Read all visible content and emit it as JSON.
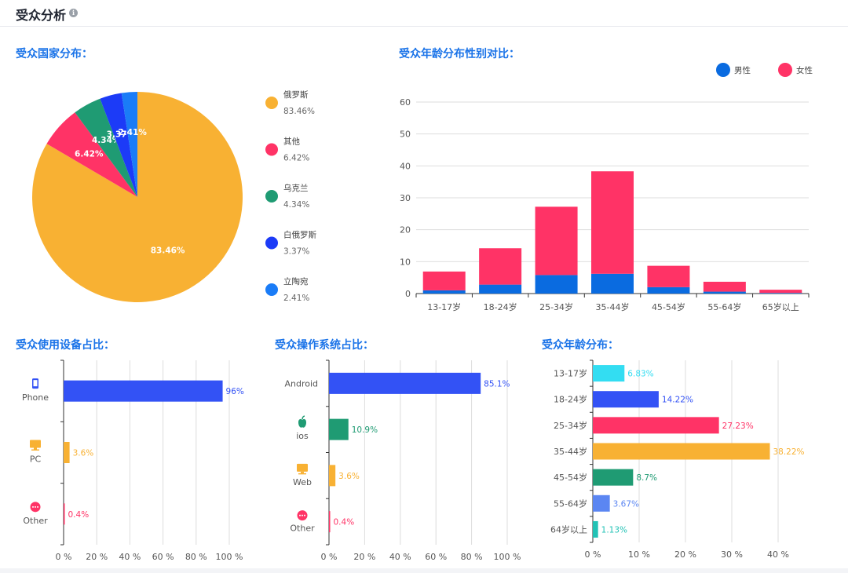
{
  "header": {
    "title": "受众分析",
    "info_icon": "info-icon"
  },
  "colors": {
    "orange": "#F8B133",
    "pink": "#FF3366",
    "teal": "#1F9B73",
    "blue": "#1C3BF7",
    "azure": "#1A7CF7",
    "male": "#0A6BE0",
    "female": "#FF3366",
    "bar_blue": "#3352F5",
    "cyan": "#33DDF2",
    "light_blue": "#5B86F2",
    "aqua": "#22C2B5",
    "section": "#1A73E8"
  },
  "chart_data": [
    {
      "id": "country",
      "type": "pie",
      "title": "受众国家分布：",
      "slices": [
        {
          "name": "俄罗斯",
          "value": 83.46,
          "label": "83.46%",
          "color": "#F8B133"
        },
        {
          "name": "其他",
          "value": 6.42,
          "label": "6.42%",
          "color": "#FF3366"
        },
        {
          "name": "乌克兰",
          "value": 4.34,
          "label": "4.34%",
          "color": "#1F9B73"
        },
        {
          "name": "白俄罗斯",
          "value": 3.37,
          "label": "3.37%",
          "color": "#1C3BF7"
        },
        {
          "name": "立陶宛",
          "value": 2.41,
          "label": "2.41%",
          "color": "#1A7CF7"
        }
      ]
    },
    {
      "id": "age_gender",
      "type": "bar",
      "stacked": true,
      "title": "受众年龄分布性别对比：",
      "categories": [
        "13-17岁",
        "18-24岁",
        "25-34岁",
        "35-44岁",
        "45-54岁",
        "55-64岁",
        "65岁以上"
      ],
      "series": [
        {
          "name": "男性",
          "color": "#0A6BE0",
          "values": [
            1.0,
            2.8,
            5.8,
            6.2,
            2.0,
            0.6,
            0.2
          ]
        },
        {
          "name": "女性",
          "color": "#FF3366",
          "values": [
            5.9,
            11.4,
            21.4,
            32.1,
            6.7,
            3.1,
            1.0
          ]
        }
      ],
      "ylim": [
        0,
        60
      ],
      "yticks": [
        0,
        10,
        20,
        30,
        40,
        50,
        60
      ],
      "legend": "top-right"
    },
    {
      "id": "device",
      "type": "bar",
      "orientation": "horizontal",
      "title": "受众使用设备占比：",
      "categories": [
        "Phone",
        "PC",
        "Other"
      ],
      "icons": [
        "phone-icon",
        "pc-icon",
        "other-icon"
      ],
      "values": [
        96,
        3.6,
        0.4
      ],
      "labels": [
        "96%",
        "3.6%",
        "0.4%"
      ],
      "colors": [
        "#3352F5",
        "#F8B133",
        "#FF3366"
      ],
      "xlim": [
        0,
        100
      ],
      "xticks": [
        "0 %",
        "20 %",
        "40 %",
        "60 %",
        "80 %",
        "100 %"
      ]
    },
    {
      "id": "os",
      "type": "bar",
      "orientation": "horizontal",
      "title": "受众操作系统占比：",
      "categories": [
        "Android",
        "ios",
        "Web",
        "Other"
      ],
      "icons": [
        "",
        "apple-icon",
        "web-icon",
        "other-icon"
      ],
      "values": [
        85.1,
        10.9,
        3.6,
        0.4
      ],
      "labels": [
        "85.1%",
        "10.9%",
        "3.6%",
        "0.4%"
      ],
      "colors": [
        "#3352F5",
        "#1F9B73",
        "#F8B133",
        "#FF3366"
      ],
      "xlim": [
        0,
        100
      ],
      "xticks": [
        "0 %",
        "20 %",
        "40 %",
        "60 %",
        "80 %",
        "100 %"
      ]
    },
    {
      "id": "age",
      "type": "bar",
      "orientation": "horizontal",
      "title": "受众年龄分布：",
      "categories": [
        "13-17岁",
        "18-24岁",
        "25-34岁",
        "35-44岁",
        "45-54岁",
        "55-64岁",
        "64岁以上"
      ],
      "values": [
        6.83,
        14.22,
        27.23,
        38.22,
        8.7,
        3.67,
        1.13
      ],
      "labels": [
        "6.83%",
        "14.22%",
        "27.23%",
        "38.22%",
        "8.7%",
        "3.67%",
        "1.13%"
      ],
      "colors": [
        "#33DDF2",
        "#3352F5",
        "#FF3366",
        "#F8B133",
        "#1F9B73",
        "#5B86F2",
        "#22C2B5"
      ],
      "xlim": [
        0,
        40
      ],
      "xticks": [
        "0 %",
        "10 %",
        "20 %",
        "30 %",
        "40 %"
      ]
    }
  ]
}
